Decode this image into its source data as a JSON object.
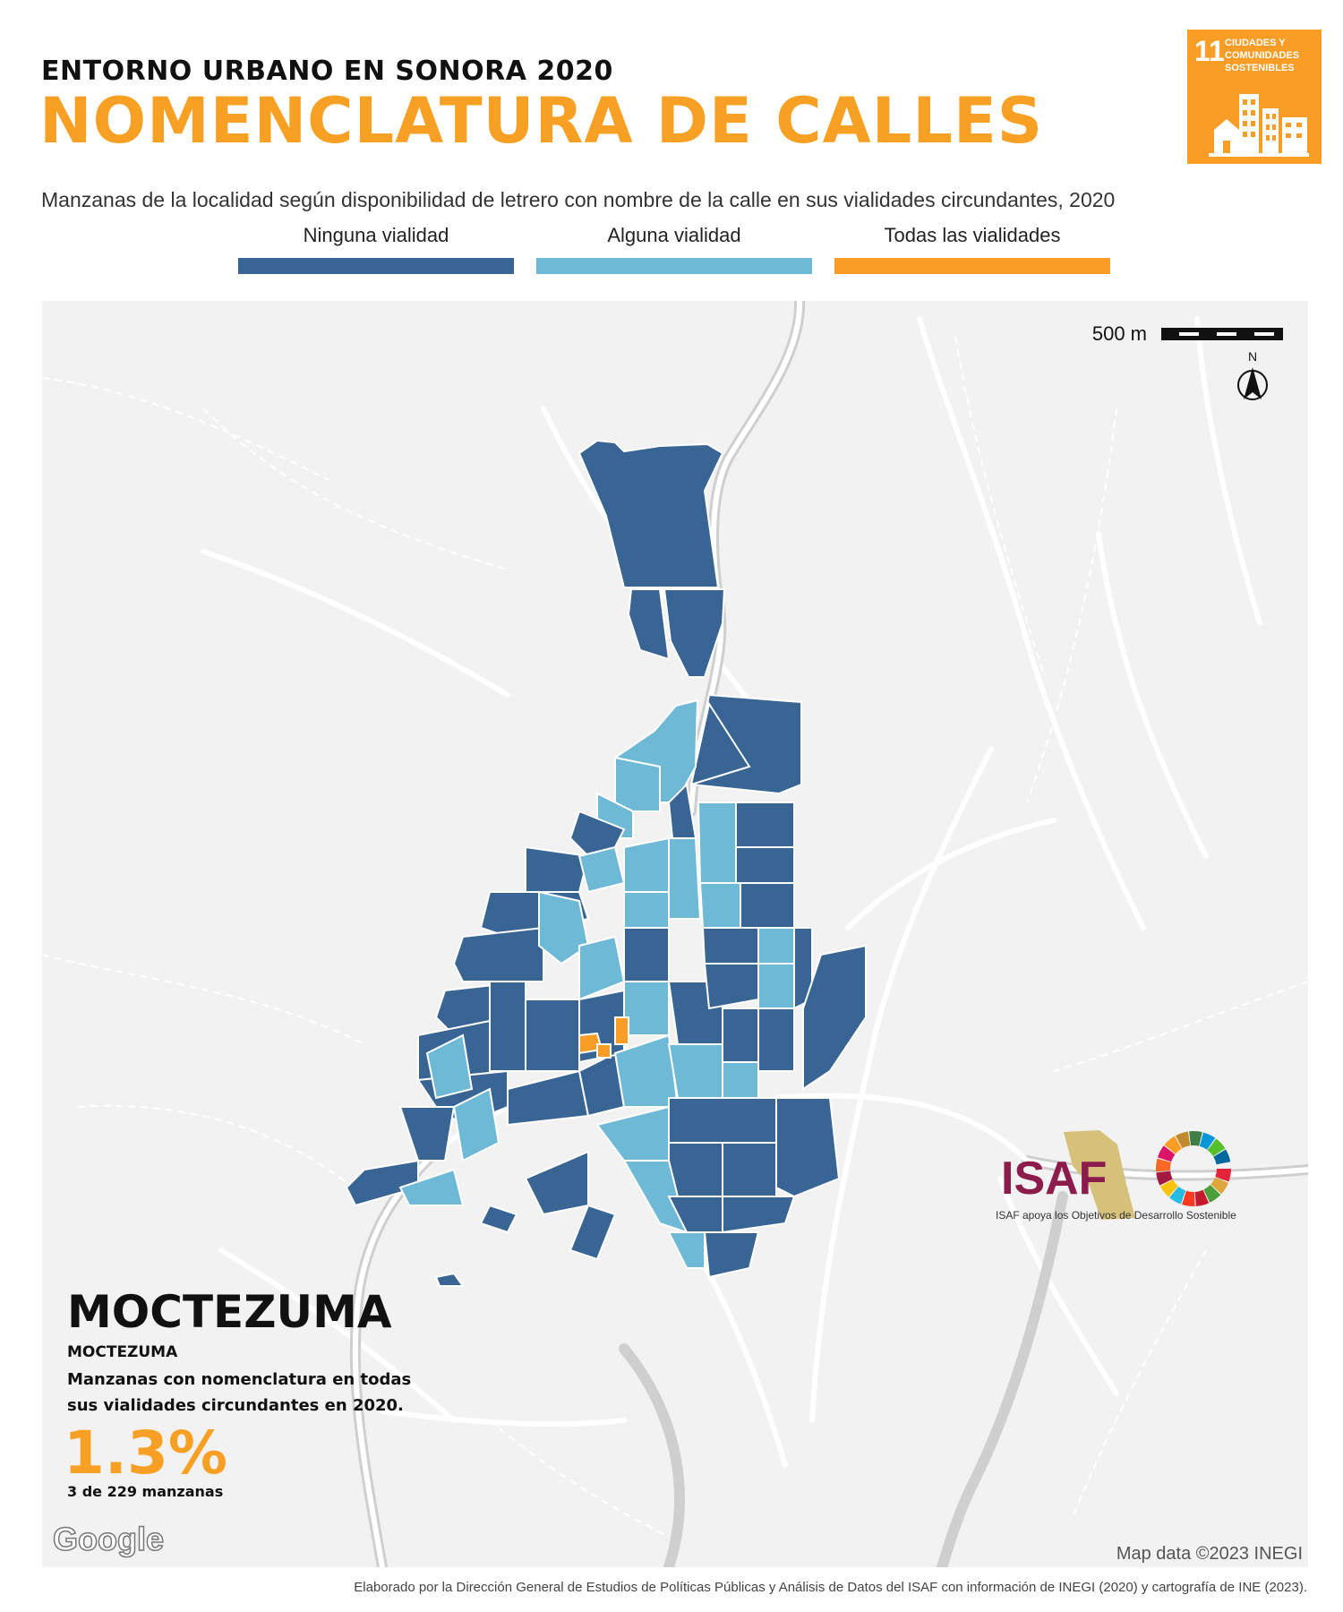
{
  "header": {
    "pretitle": "ENTORNO URBANO EN SONORA 2020",
    "title": "NOMENCLATURA DE CALLES",
    "subtitle": "Manzanas de la localidad según disponibilidad de letrero con nombre de la calle en sus vialidades circundantes, 2020"
  },
  "sdg_badge": {
    "number": "11",
    "text": "CIUDADES Y COMUNIDADES SOSTENIBLES",
    "color": "#F99D26"
  },
  "legend": [
    {
      "label": "Ninguna vialidad",
      "color": "#386594"
    },
    {
      "label": "Alguna vialidad",
      "color": "#6DB9D6"
    },
    {
      "label": "Todas las vialidades",
      "color": "#F99D26"
    }
  ],
  "map": {
    "scale_label": "500 m",
    "north_label": "N",
    "place_name": "MOCTEZUMA",
    "municipality": "MOCTEZUMA",
    "stat_description": "Manzanas con nomenclatura en todas sus vialidades circundantes en 2020.",
    "stat_value": "1.3%",
    "stat_count": "3 de 229 manzanas",
    "provider_logo": "Google",
    "attribution": "Map data ©2023 INEGI"
  },
  "logos": {
    "isaf": "ISAF",
    "isaf_tagline": "ISAF apoya los Objetivos de Desarrollo Sostenible"
  },
  "footer": "Elaborado por la Dirección General de Estudios de Políticas Públicas y Análisis de Datos del ISAF con información de INEGI (2020) y cartografía de INE (2023)."
}
